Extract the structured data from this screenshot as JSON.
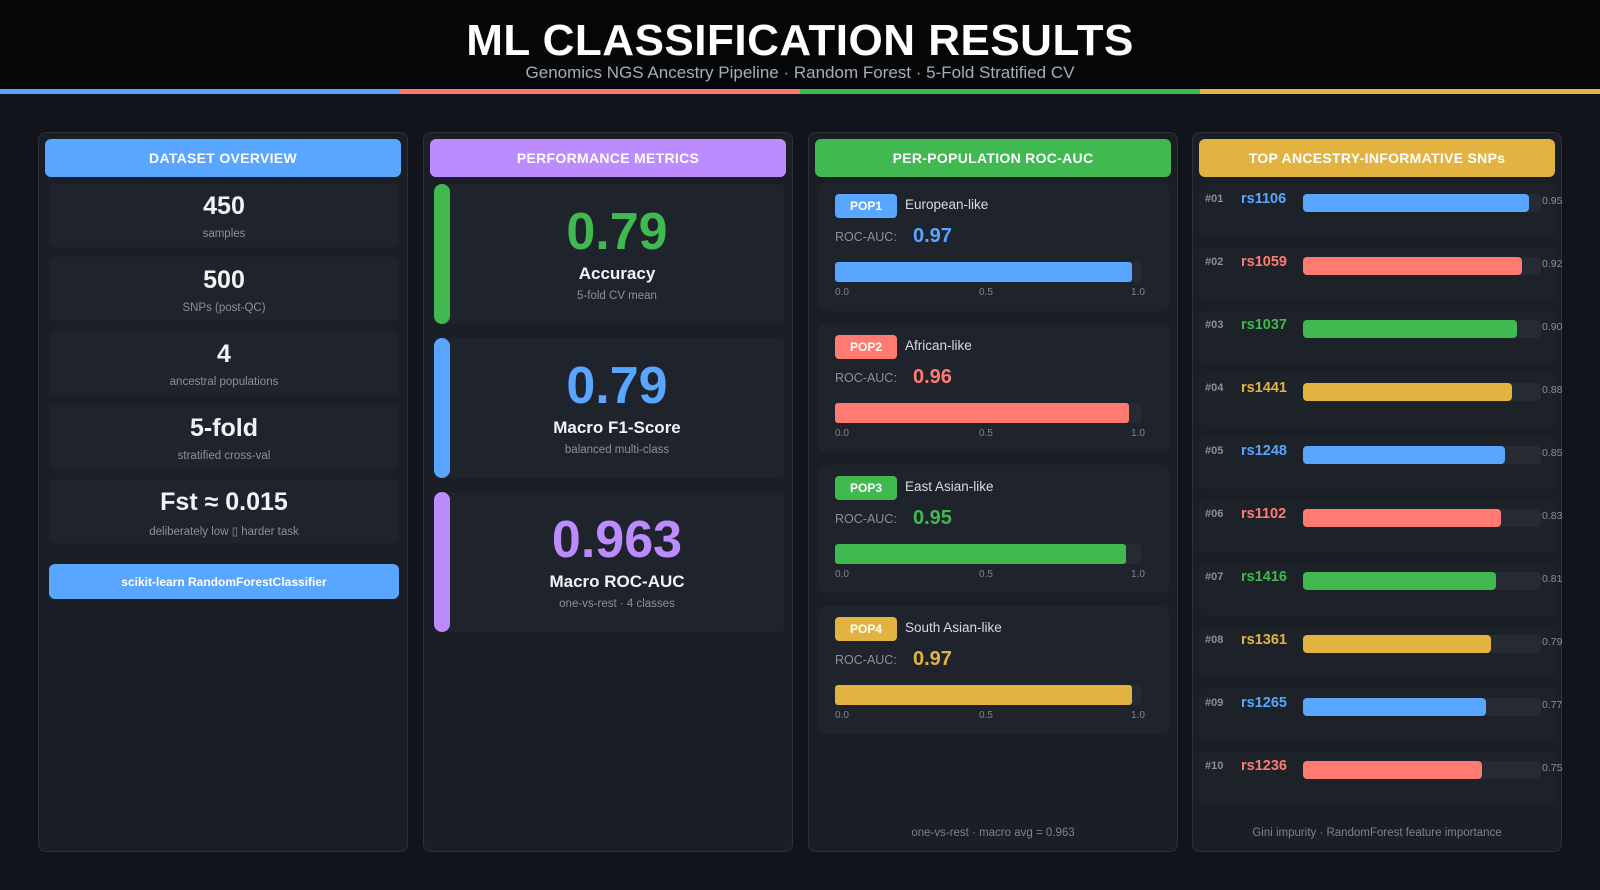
{
  "header": {
    "title": "ML CLASSIFICATION RESULTS",
    "subtitle": "Genomics NGS Ancestry Pipeline  ·  Random Forest  ·  5-Fold Stratified CV"
  },
  "colors": {
    "blue": "#58a6ff",
    "red": "#ff7b72",
    "green": "#3fb950",
    "yellow": "#e3b341",
    "purple": "#bc8cff"
  },
  "dataset": {
    "heading": "DATASET OVERVIEW",
    "cards": [
      {
        "value": "450",
        "label": "samples"
      },
      {
        "value": "500",
        "label": "SNPs  (post-QC)"
      },
      {
        "value": "4",
        "label": "ancestral populations"
      },
      {
        "value": "5-fold",
        "label": "stratified cross-val"
      },
      {
        "value": "Fst ≈ 0.015",
        "label": "deliberately low  ▯  harder task"
      }
    ],
    "model_label": "scikit-learn  RandomForestClassifier"
  },
  "metrics": {
    "heading": "PERFORMANCE METRICS",
    "cards": [
      {
        "value": "0.79",
        "name": "Accuracy",
        "sub": "5-fold CV mean",
        "color": "#3fb950"
      },
      {
        "value": "0.79",
        "name": "Macro F1-Score",
        "sub": "balanced multi-class",
        "color": "#58a6ff"
      },
      {
        "value": "0.963",
        "name": "Macro ROC-AUC",
        "sub": "one-vs-rest  ·  4 classes",
        "color": "#bc8cff"
      }
    ]
  },
  "roc": {
    "heading": "PER-POPULATION ROC-AUC",
    "metric_label": "ROC-AUC:",
    "ticks": [
      "0.0",
      "0.5",
      "1.0"
    ],
    "populations": [
      {
        "badge": "POP1",
        "name": "European-like",
        "value": "0.97",
        "score": 0.97,
        "color": "#58a6ff"
      },
      {
        "badge": "POP2",
        "name": "African-like",
        "value": "0.96",
        "score": 0.96,
        "color": "#ff7b72"
      },
      {
        "badge": "POP3",
        "name": "East Asian-like",
        "value": "0.95",
        "score": 0.95,
        "color": "#3fb950"
      },
      {
        "badge": "POP4",
        "name": "South Asian-like",
        "value": "0.97",
        "score": 0.97,
        "color": "#e3b341"
      }
    ],
    "footer": "one-vs-rest  ·  macro avg = 0.963"
  },
  "snps": {
    "heading": "TOP ANCESTRY-INFORMATIVE SNPs",
    "items": [
      {
        "rank": "#01",
        "id": "rs1106",
        "value": "0.95",
        "score": 0.95,
        "color": "#58a6ff"
      },
      {
        "rank": "#02",
        "id": "rs1059",
        "value": "0.92",
        "score": 0.92,
        "color": "#ff7b72"
      },
      {
        "rank": "#03",
        "id": "rs1037",
        "value": "0.90",
        "score": 0.9,
        "color": "#3fb950"
      },
      {
        "rank": "#04",
        "id": "rs1441",
        "value": "0.88",
        "score": 0.88,
        "color": "#e3b341"
      },
      {
        "rank": "#05",
        "id": "rs1248",
        "value": "0.85",
        "score": 0.85,
        "color": "#58a6ff"
      },
      {
        "rank": "#06",
        "id": "rs1102",
        "value": "0.83",
        "score": 0.83,
        "color": "#ff7b72"
      },
      {
        "rank": "#07",
        "id": "rs1416",
        "value": "0.81",
        "score": 0.81,
        "color": "#3fb950"
      },
      {
        "rank": "#08",
        "id": "rs1361",
        "value": "0.79",
        "score": 0.79,
        "color": "#e3b341"
      },
      {
        "rank": "#09",
        "id": "rs1265",
        "value": "0.77",
        "score": 0.77,
        "color": "#58a6ff"
      },
      {
        "rank": "#10",
        "id": "rs1236",
        "value": "0.75",
        "score": 0.75,
        "color": "#ff7b72"
      }
    ],
    "footer": "Gini impurity  ·  RandomForest feature importance"
  }
}
